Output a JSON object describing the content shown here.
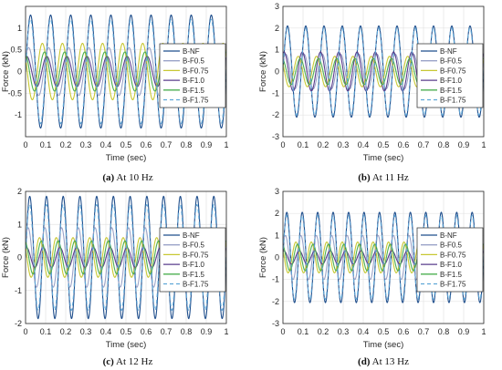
{
  "chart_data": [
    {
      "type": "line",
      "caption_letter": "(a)",
      "caption_text": "At 10 Hz",
      "frequency_hz": 10,
      "xlabel": "Time (sec)",
      "ylabel": "Force (kN)",
      "xlim": [
        0,
        1
      ],
      "ylim": [
        -1.5,
        1.5
      ],
      "xticks": [
        "0",
        "0.1",
        "0.2",
        "0.3",
        "0.4",
        "0.5",
        "0.6",
        "0.7",
        "0.8",
        "0.9",
        "1"
      ],
      "yticks": [
        "-1",
        "-0.5",
        "0",
        "0.5",
        "1"
      ],
      "yticks_values": [
        -1,
        -0.5,
        0,
        0.5,
        1
      ],
      "grid": true,
      "legend_position": "right",
      "series": [
        {
          "name": "B-NF",
          "amplitude": 1.3,
          "phase": 0,
          "color": "#1f4e8c",
          "dash": ""
        },
        {
          "name": "B-F0.5",
          "amplitude": 0.55,
          "phase": 0.6,
          "color": "#9aa3c8",
          "dash": ""
        },
        {
          "name": "B-F0.75",
          "amplitude": 0.65,
          "phase": 2.6,
          "color": "#c8c832",
          "dash": ""
        },
        {
          "name": "B-F1.0",
          "amplitude": 0.35,
          "phase": 1.2,
          "color": "#5a3e8c",
          "dash": ""
        },
        {
          "name": "B-F1.5",
          "amplitude": 0.45,
          "phase": 1.9,
          "color": "#4caf50",
          "dash": ""
        },
        {
          "name": "B-F1.75",
          "amplitude": 1.2,
          "phase": 0.05,
          "color": "#5fa8d8",
          "dash": "4,3"
        }
      ]
    },
    {
      "type": "line",
      "caption_letter": "(b)",
      "caption_text": "At 11 Hz",
      "frequency_hz": 11,
      "xlabel": "Time (sec)",
      "ylabel": "Force (kN)",
      "xlim": [
        0,
        1
      ],
      "ylim": [
        -3,
        3
      ],
      "xticks": [
        "0",
        "0.1",
        "0.2",
        "0.3",
        "0.4",
        "0.5",
        "0.6",
        "0.7",
        "0.8",
        "0.9",
        "1"
      ],
      "yticks": [
        "-3",
        "-2",
        "-1",
        "0",
        "1",
        "2",
        "3"
      ],
      "yticks_values": [
        -3,
        -2,
        -1,
        0,
        1,
        2,
        3
      ],
      "grid": true,
      "legend_position": "right",
      "series": [
        {
          "name": "B-NF",
          "amplitude": 2.1,
          "phase": 0,
          "color": "#1f4e8c",
          "dash": ""
        },
        {
          "name": "B-F0.5",
          "amplitude": 0.8,
          "phase": 0.6,
          "color": "#9aa3c8",
          "dash": ""
        },
        {
          "name": "B-F0.75",
          "amplitude": 0.7,
          "phase": 2.6,
          "color": "#c8c832",
          "dash": ""
        },
        {
          "name": "B-F1.0",
          "amplitude": 0.9,
          "phase": 1.2,
          "color": "#5a3e8c",
          "dash": ""
        },
        {
          "name": "B-F1.5",
          "amplitude": 0.6,
          "phase": 1.9,
          "color": "#4caf50",
          "dash": ""
        },
        {
          "name": "B-F1.75",
          "amplitude": 2.0,
          "phase": 0.05,
          "color": "#5fa8d8",
          "dash": "4,3"
        }
      ]
    },
    {
      "type": "line",
      "caption_letter": "(c)",
      "caption_text": "At 12 Hz",
      "frequency_hz": 12,
      "xlabel": "Time (sec)",
      "ylabel": "Force (kN)",
      "xlim": [
        0,
        1
      ],
      "ylim": [
        -2,
        2
      ],
      "xticks": [
        "0",
        "0.1",
        "0.2",
        "0.3",
        "0.4",
        "0.5",
        "0.6",
        "0.7",
        "0.8",
        "0.9",
        "1"
      ],
      "yticks": [
        "-2",
        "-1",
        "0",
        "1",
        "2"
      ],
      "yticks_values": [
        -2,
        -1,
        0,
        1,
        2
      ],
      "grid": true,
      "legend_position": "right",
      "series": [
        {
          "name": "B-NF",
          "amplitude": 1.85,
          "phase": 0,
          "color": "#1f4e8c",
          "dash": ""
        },
        {
          "name": "B-F0.5",
          "amplitude": 0.9,
          "phase": 0.6,
          "color": "#9aa3c8",
          "dash": ""
        },
        {
          "name": "B-F0.75",
          "amplitude": 0.6,
          "phase": 2.6,
          "color": "#c8c832",
          "dash": ""
        },
        {
          "name": "B-F1.0",
          "amplitude": 0.3,
          "phase": 1.2,
          "color": "#5a3e8c",
          "dash": ""
        },
        {
          "name": "B-F1.5",
          "amplitude": 0.5,
          "phase": 1.9,
          "color": "#4caf50",
          "dash": ""
        },
        {
          "name": "B-F1.75",
          "amplitude": 1.6,
          "phase": 0.05,
          "color": "#5fa8d8",
          "dash": "4,3"
        }
      ]
    },
    {
      "type": "line",
      "caption_letter": "(d)",
      "caption_text": "At 13 Hz",
      "frequency_hz": 13,
      "xlabel": "Time (sec)",
      "ylabel": "Force (kN)",
      "xlim": [
        0,
        1
      ],
      "ylim": [
        -3,
        3
      ],
      "xticks": [
        "0",
        "0.1",
        "0.2",
        "0.3",
        "0.4",
        "0.5",
        "0.6",
        "0.7",
        "0.8",
        "0.9",
        "1"
      ],
      "yticks": [
        "-3",
        "-2",
        "-1",
        "0",
        "1",
        "2",
        "3"
      ],
      "yticks_values": [
        -3,
        -2,
        -1,
        0,
        1,
        2,
        3
      ],
      "grid": true,
      "legend_position": "right",
      "series": [
        {
          "name": "B-NF",
          "amplitude": 2.05,
          "phase": 0,
          "color": "#1f4e8c",
          "dash": ""
        },
        {
          "name": "B-F0.5",
          "amplitude": 1.0,
          "phase": 0.6,
          "color": "#9aa3c8",
          "dash": ""
        },
        {
          "name": "B-F0.75",
          "amplitude": 0.7,
          "phase": 2.6,
          "color": "#c8c832",
          "dash": ""
        },
        {
          "name": "B-F1.0",
          "amplitude": 0.3,
          "phase": 1.2,
          "color": "#5a3e8c",
          "dash": ""
        },
        {
          "name": "B-F1.5",
          "amplitude": 0.6,
          "phase": 1.9,
          "color": "#4caf50",
          "dash": ""
        },
        {
          "name": "B-F1.75",
          "amplitude": 1.9,
          "phase": 0.05,
          "color": "#5fa8d8",
          "dash": "4,3"
        }
      ]
    }
  ]
}
